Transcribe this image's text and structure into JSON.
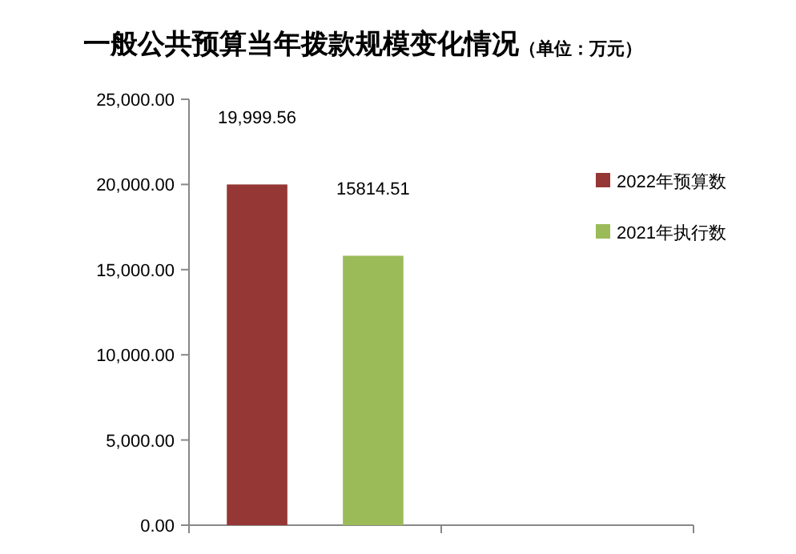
{
  "chart_data": {
    "type": "bar",
    "title": "一般公共预算当年拨款规模变化情况",
    "subtitle": "（单位：万元）",
    "categories": [
      null,
      null
    ],
    "series": [
      {
        "name": "2022年预算数",
        "color": "#953735",
        "values": [
          19999.56,
          null
        ],
        "value_labels": [
          "19,999.56",
          null
        ]
      },
      {
        "name": "2021年执行数",
        "color": "#9bbb59",
        "values": [
          15814.51,
          null
        ],
        "value_labels": [
          "15814.51",
          null
        ]
      }
    ],
    "ylim": [
      0,
      25000
    ],
    "yticks": [
      {
        "value": 0,
        "label": "0.00"
      },
      {
        "value": 5000,
        "label": "5,000.00"
      },
      {
        "value": 10000,
        "label": "10,000.00"
      },
      {
        "value": 15000,
        "label": "15,000.00"
      },
      {
        "value": 20000,
        "label": "20,000.00"
      },
      {
        "value": 25000,
        "label": "25,000.00"
      }
    ],
    "grid": false,
    "legend": "right"
  }
}
